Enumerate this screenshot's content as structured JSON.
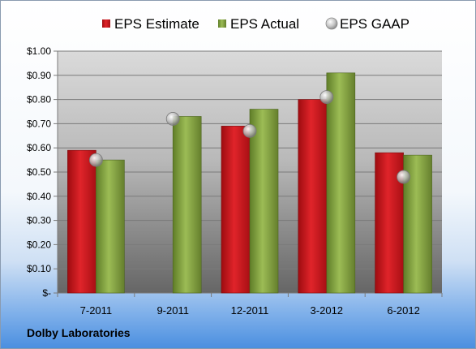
{
  "footer": {
    "company": "Dolby Laboratories"
  },
  "chart_data": {
    "type": "bar",
    "categories": [
      "7-2011",
      "9-2011",
      "12-2011",
      "3-2012",
      "6-2012"
    ],
    "series": [
      {
        "name": "EPS Estimate",
        "kind": "bar",
        "color": "#c0151b",
        "values": [
          0.59,
          null,
          0.69,
          0.8,
          0.58
        ]
      },
      {
        "name": "EPS Actual",
        "kind": "bar",
        "color": "#7f9e3c",
        "values": [
          0.55,
          0.73,
          0.76,
          0.91,
          0.57
        ]
      },
      {
        "name": "EPS GAAP",
        "kind": "marker",
        "color": "#a8a8a8",
        "values": [
          0.55,
          0.72,
          0.67,
          0.81,
          0.48
        ]
      }
    ],
    "yticks": [
      "$-",
      "$0.10",
      "$0.20",
      "$0.30",
      "$0.40",
      "$0.50",
      "$0.60",
      "$0.70",
      "$0.80",
      "$0.90",
      "$1.00"
    ],
    "ylim": [
      0,
      1.0
    ],
    "grid": true,
    "legend_position": "top"
  }
}
